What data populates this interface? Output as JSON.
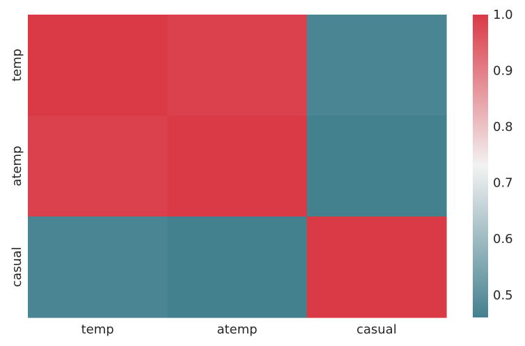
{
  "chart_data": {
    "type": "heatmap",
    "x_categories": [
      "temp",
      "atemp",
      "casual"
    ],
    "y_categories": [
      "temp",
      "atemp",
      "casual"
    ],
    "values": [
      [
        1.0,
        0.99,
        0.47
      ],
      [
        0.99,
        1.0,
        0.46
      ],
      [
        0.47,
        0.46,
        1.0
      ]
    ],
    "title": "",
    "xlabel": "",
    "ylabel": "",
    "colorbar": {
      "min": 0.46,
      "max": 1.0,
      "ticks": [
        0.5,
        0.6,
        0.7,
        0.8,
        0.9,
        1.0
      ],
      "tick_labels": [
        "0.5",
        "0.6",
        "0.7",
        "0.8",
        "0.9",
        "1.0"
      ]
    },
    "colors": {
      "low": "#44818f",
      "mid": "#f2f2f2",
      "high": "#da3a46"
    }
  }
}
